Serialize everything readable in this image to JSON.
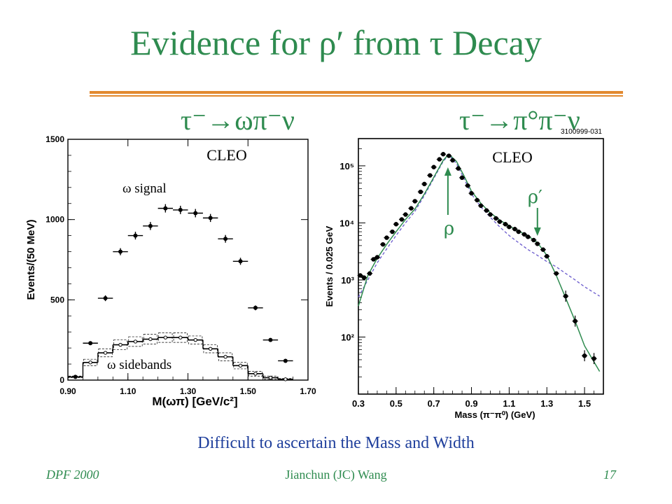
{
  "slide": {
    "title": "Evidence for ρ′ from τ Decay",
    "caption": "Difficult to ascertain the Mass and Width",
    "footer_left": "DPF 2000",
    "footer_center": "Jianchun (JC) Wang",
    "footer_right": "17"
  },
  "colors": {
    "title": "#2e8b4f",
    "rule": "#e2892f",
    "caption": "#1f3f9c",
    "arrow": "#2e8b4f",
    "dashed_fit": "#6a5acd",
    "solid_fit": "#2e8b4f"
  },
  "chart_data": [
    {
      "type": "scatter",
      "decay_label": "τ⁻→ωπ⁻ν",
      "experiment_label": "CLEO",
      "xlabel": "M(ωπ) [GeV/c²]",
      "ylabel": "Events/(50 MeV)",
      "xlim": [
        0.9,
        1.7
      ],
      "ylim": [
        0,
        1500
      ],
      "x_ticks": [
        "0.90",
        "1.10",
        "1.30",
        "1.50",
        "1.70"
      ],
      "x_tick_values": [
        0.9,
        1.1,
        1.3,
        1.5,
        1.7
      ],
      "y_ticks": [
        "0",
        "500",
        "1000",
        "1500"
      ],
      "y_tick_values": [
        0,
        500,
        1000,
        1500
      ],
      "scale": "linear",
      "grid": false,
      "annotations": [
        {
          "text": "ω signal"
        },
        {
          "text": "ω sidebands"
        }
      ],
      "series": [
        {
          "name": "ω signal",
          "style": "points",
          "x": [
            0.925,
            0.975,
            1.025,
            1.075,
            1.125,
            1.175,
            1.225,
            1.275,
            1.325,
            1.375,
            1.425,
            1.475,
            1.525,
            1.575,
            1.625
          ],
          "y": [
            20,
            230,
            510,
            800,
            900,
            960,
            1070,
            1060,
            1040,
            1010,
            880,
            740,
            450,
            250,
            120
          ],
          "yerr": [
            8,
            12,
            18,
            22,
            24,
            25,
            26,
            26,
            26,
            25,
            24,
            22,
            15,
            10,
            8
          ]
        },
        {
          "name": "ω sidebands",
          "style": "steps",
          "x": [
            0.925,
            0.975,
            1.025,
            1.075,
            1.125,
            1.175,
            1.225,
            1.275,
            1.325,
            1.375,
            1.425,
            1.475,
            1.525,
            1.575,
            1.625
          ],
          "y": [
            20,
            110,
            170,
            220,
            240,
            255,
            265,
            265,
            250,
            195,
            145,
            90,
            40,
            15,
            5
          ],
          "band": [
            5,
            20,
            25,
            30,
            30,
            30,
            30,
            30,
            25,
            25,
            25,
            20,
            15,
            10,
            5
          ]
        }
      ]
    },
    {
      "type": "scatter",
      "decay_label": "τ⁻→π°π⁻ν",
      "experiment_label": "CLEO",
      "figure_id": "3100999-031",
      "xlabel": "Mass (π⁻π⁰) (GeV)",
      "ylabel": "Events / 0.025 GeV",
      "xlim": [
        0.3,
        1.6
      ],
      "ylim": [
        10,
        300000
      ],
      "scale": "log",
      "x_ticks": [
        "0.3",
        "0.5",
        "0.7",
        "0.9",
        "1.1",
        "1.3",
        "1.5"
      ],
      "x_tick_values": [
        0.3,
        0.5,
        0.7,
        0.9,
        1.1,
        1.3,
        1.5
      ],
      "y_ticks": [
        "10²",
        "10³",
        "10⁴",
        "10⁵"
      ],
      "y_tick_values": [
        100,
        1000,
        10000,
        100000
      ],
      "grid": false,
      "annotations": [
        {
          "text": "ρ",
          "x": 0.775
        },
        {
          "text": "ρ′",
          "x": 1.25
        }
      ],
      "series": [
        {
          "name": "data",
          "style": "points",
          "x": [
            0.31,
            0.33,
            0.36,
            0.38,
            0.4,
            0.43,
            0.45,
            0.48,
            0.5,
            0.53,
            0.55,
            0.58,
            0.6,
            0.63,
            0.65,
            0.68,
            0.7,
            0.73,
            0.75,
            0.78,
            0.8,
            0.83,
            0.85,
            0.88,
            0.9,
            0.93,
            0.95,
            0.98,
            1.0,
            1.03,
            1.05,
            1.08,
            1.1,
            1.13,
            1.15,
            1.18,
            1.2,
            1.23,
            1.25,
            1.28,
            1.3,
            1.35,
            1.4,
            1.45,
            1.5,
            1.55
          ],
          "y": [
            1200,
            1100,
            1300,
            2300,
            2500,
            4200,
            5500,
            7000,
            9500,
            11500,
            14000,
            18000,
            24000,
            35000,
            48000,
            68000,
            95000,
            130000,
            160000,
            150000,
            125000,
            90000,
            62000,
            45000,
            33000,
            25000,
            20000,
            16500,
            14000,
            12000,
            10500,
            9500,
            8500,
            7800,
            7000,
            6300,
            5700,
            5000,
            4300,
            3400,
            2600,
            1300,
            520,
            190,
            47,
            42
          ]
        },
        {
          "name": "dashed fit",
          "style": "dashed",
          "x": [
            0.3,
            0.35,
            0.4,
            0.45,
            0.5,
            0.55,
            0.6,
            0.65,
            0.7,
            0.75,
            0.78,
            0.82,
            0.86,
            0.9,
            0.95,
            1.0,
            1.05,
            1.1,
            1.15,
            1.2,
            1.25,
            1.3,
            1.35,
            1.4,
            1.45,
            1.5,
            1.58
          ],
          "y": [
            500,
            1000,
            2000,
            3500,
            6000,
            10000,
            16000,
            30000,
            60000,
            120000,
            155000,
            110000,
            60000,
            32000,
            19000,
            12500,
            8500,
            6000,
            4500,
            3400,
            2700,
            2100,
            1700,
            1300,
            1000,
            760,
            520
          ]
        },
        {
          "name": "solid fit",
          "style": "solid",
          "x": [
            0.3,
            0.35,
            0.4,
            0.45,
            0.5,
            0.55,
            0.6,
            0.65,
            0.7,
            0.75,
            0.78,
            0.82,
            0.86,
            0.9,
            0.95,
            1.0,
            1.05,
            1.1,
            1.15,
            1.2,
            1.25,
            1.3,
            1.35,
            1.4,
            1.45,
            1.5,
            1.58
          ],
          "y": [
            350,
            1200,
            2400,
            4200,
            7000,
            11500,
            17500,
            32000,
            63000,
            125000,
            160000,
            120000,
            67000,
            36000,
            22000,
            15000,
            11200,
            8800,
            7200,
            5900,
            4500,
            2700,
            1200,
            480,
            190,
            70,
            25
          ]
        }
      ]
    }
  ]
}
